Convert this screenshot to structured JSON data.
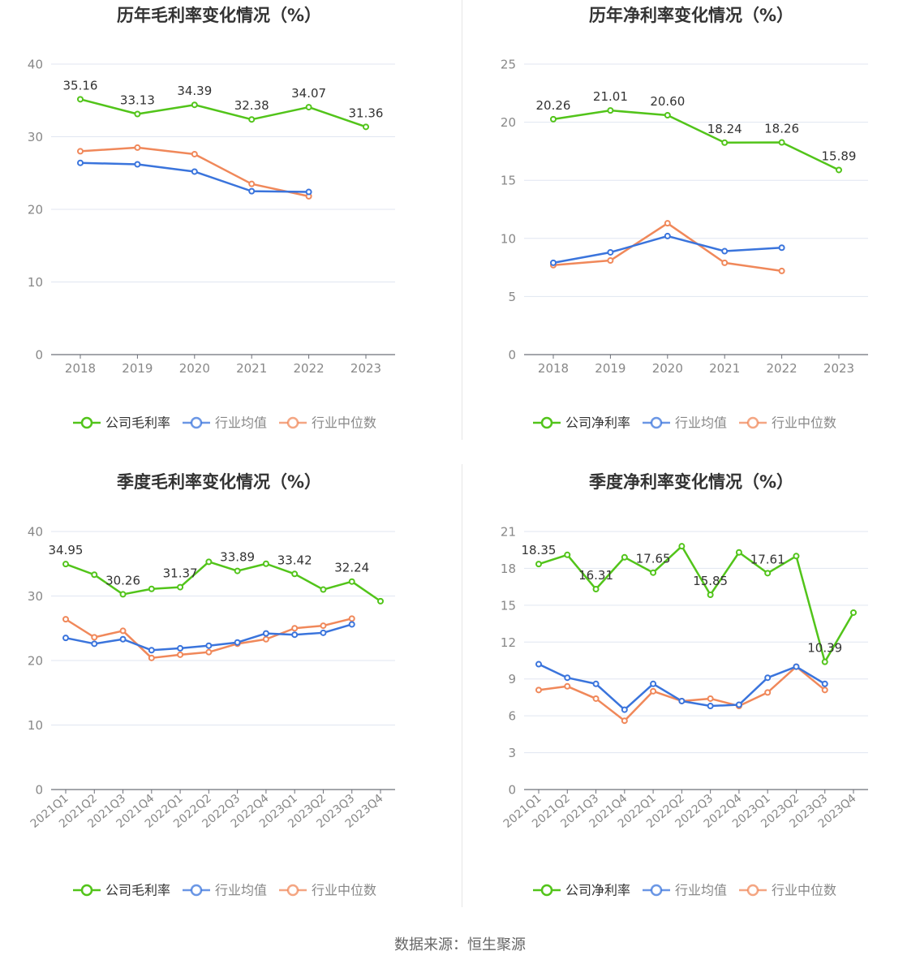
{
  "colors": {
    "company": "#52c41a",
    "avg": "#3a74dc",
    "median": "#f0885a",
    "grid": "#e0e6f1",
    "axis": "#6e7079",
    "label": "#333333",
    "tick": "#888888"
  },
  "charts": [
    {
      "title": "历年毛利率变化情况（%）",
      "legend": [
        "公司毛利率",
        "行业均值",
        "行业中位数"
      ]
    },
    {
      "title": "历年净利率变化情况（%）",
      "legend": [
        "公司净利率",
        "行业均值",
        "行业中位数"
      ]
    },
    {
      "title": "季度毛利率变化情况（%）",
      "legend": [
        "公司毛利率",
        "行业均值",
        "行业中位数"
      ]
    },
    {
      "title": "季度净利率变化情况（%）",
      "legend": [
        "公司净利率",
        "行业均值",
        "行业中位数"
      ]
    }
  ],
  "chart_data": [
    {
      "type": "line",
      "title": "历年毛利率变化情况（%）",
      "categories": [
        "2018",
        "2019",
        "2020",
        "2021",
        "2022",
        "2023"
      ],
      "ylim": [
        0,
        40
      ],
      "yticks": [
        0,
        10,
        20,
        30,
        40
      ],
      "series": [
        {
          "name": "公司毛利率",
          "values": [
            35.16,
            33.13,
            34.39,
            32.38,
            34.07,
            31.36
          ],
          "labels": [
            "35.16",
            "33.13",
            "34.39",
            "32.38",
            "34.07",
            "31.36"
          ]
        },
        {
          "name": "行业均值",
          "values": [
            26.4,
            26.2,
            25.2,
            22.5,
            22.4,
            null
          ],
          "labels": []
        },
        {
          "name": "行业中位数",
          "values": [
            28.0,
            28.5,
            27.6,
            23.5,
            21.8,
            null
          ],
          "labels": []
        }
      ],
      "grid": true,
      "legend": "bottom"
    },
    {
      "type": "line",
      "title": "历年净利率变化情况（%）",
      "categories": [
        "2018",
        "2019",
        "2020",
        "2021",
        "2022",
        "2023"
      ],
      "ylim": [
        0,
        25
      ],
      "yticks": [
        0,
        5,
        10,
        15,
        20,
        25
      ],
      "series": [
        {
          "name": "公司净利率",
          "values": [
            20.26,
            21.01,
            20.6,
            18.24,
            18.26,
            15.89
          ],
          "labels": [
            "20.26",
            "21.01",
            "20.60",
            "18.24",
            "18.26",
            "15.89"
          ]
        },
        {
          "name": "行业均值",
          "values": [
            7.9,
            8.8,
            10.2,
            8.9,
            9.2,
            null
          ],
          "labels": []
        },
        {
          "name": "行业中位数",
          "values": [
            7.7,
            8.1,
            11.3,
            7.9,
            7.2,
            null
          ],
          "labels": []
        }
      ],
      "grid": true,
      "legend": "bottom"
    },
    {
      "type": "line",
      "title": "季度毛利率变化情况（%）",
      "categories": [
        "2021Q1",
        "2021Q2",
        "2021Q3",
        "2021Q4",
        "2022Q1",
        "2022Q2",
        "2022Q3",
        "2022Q4",
        "2023Q1",
        "2023Q2",
        "2023Q3",
        "2023Q4"
      ],
      "ylim": [
        0,
        40
      ],
      "yticks": [
        0,
        10,
        20,
        30,
        40
      ],
      "series": [
        {
          "name": "公司毛利率",
          "values": [
            34.95,
            33.3,
            30.26,
            31.1,
            31.37,
            35.3,
            33.89,
            35.0,
            33.42,
            31.0,
            32.24,
            29.2
          ],
          "labels": [
            "34.95",
            null,
            "30.26",
            null,
            "31.37",
            null,
            "33.89",
            null,
            "33.42",
            null,
            "32.24",
            null
          ]
        },
        {
          "name": "行业均值",
          "values": [
            23.5,
            22.6,
            23.3,
            21.6,
            21.9,
            22.3,
            22.8,
            24.2,
            24.0,
            24.3,
            25.6,
            null
          ],
          "labels": []
        },
        {
          "name": "行业中位数",
          "values": [
            26.4,
            23.6,
            24.6,
            20.4,
            20.9,
            21.3,
            22.6,
            23.3,
            25.0,
            25.4,
            26.5,
            null
          ],
          "labels": []
        }
      ],
      "grid": true,
      "legend": "bottom"
    },
    {
      "type": "line",
      "title": "季度净利率变化情况（%）",
      "categories": [
        "2021Q1",
        "2021Q2",
        "2021Q3",
        "2021Q4",
        "2022Q1",
        "2022Q2",
        "2022Q3",
        "2022Q4",
        "2023Q1",
        "2023Q2",
        "2023Q3",
        "2023Q4"
      ],
      "ylim": [
        0,
        21
      ],
      "yticks": [
        0,
        3,
        6,
        9,
        12,
        15,
        18,
        21
      ],
      "series": [
        {
          "name": "公司净利率",
          "values": [
            18.35,
            19.1,
            16.31,
            18.9,
            17.65,
            19.8,
            15.85,
            19.3,
            17.61,
            19.0,
            10.39,
            14.4
          ],
          "labels": [
            "18.35",
            null,
            "16.31",
            null,
            "17.65",
            null,
            "15.85",
            null,
            "17.61",
            null,
            "10.39",
            null
          ]
        },
        {
          "name": "行业均值",
          "values": [
            10.2,
            9.1,
            8.6,
            6.5,
            8.6,
            7.2,
            6.8,
            6.9,
            9.1,
            10.0,
            8.6,
            null
          ],
          "labels": []
        },
        {
          "name": "行业中位数",
          "values": [
            8.1,
            8.4,
            7.4,
            5.6,
            8.0,
            7.2,
            7.4,
            6.8,
            7.9,
            10.0,
            8.1,
            null
          ],
          "labels": []
        }
      ],
      "grid": true,
      "legend": "bottom"
    }
  ],
  "footer": "数据来源：恒生聚源"
}
